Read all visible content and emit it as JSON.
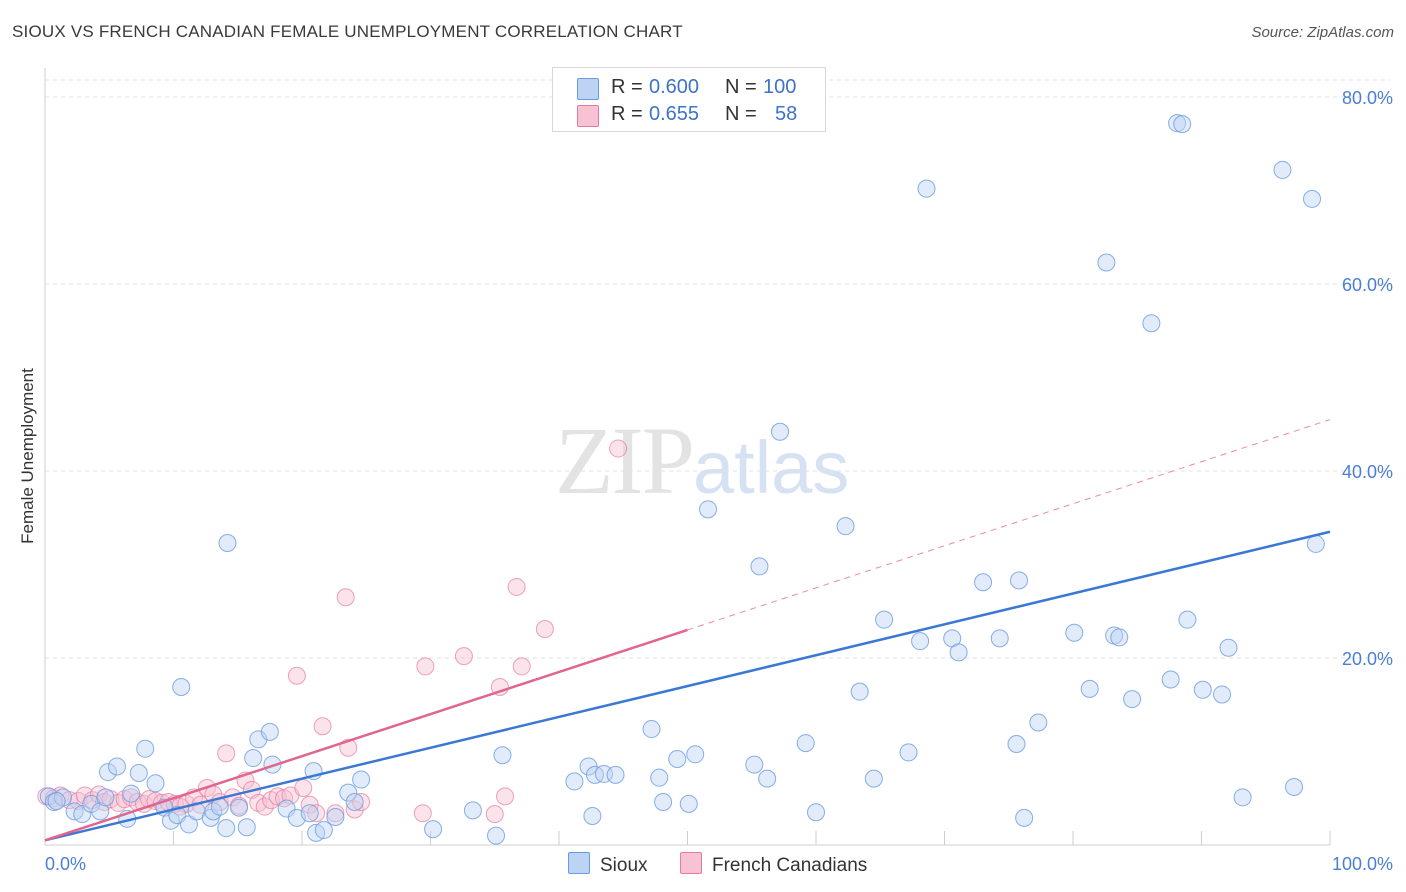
{
  "title": "SIOUX VS FRENCH CANADIAN FEMALE UNEMPLOYMENT CORRELATION CHART",
  "source": "Source: ZipAtlas.com",
  "watermark": {
    "part1": "ZIP",
    "part2": "atlas"
  },
  "colors": {
    "sioux": "#6a9be0",
    "sioux_fill": "#bcd3f3",
    "french": "#e57ca0",
    "french_fill": "#f7c2d3",
    "tick": "#4a7fd4",
    "grid": "#e2e2e2"
  },
  "legend": {
    "rows": [
      {
        "r_label": "R =",
        "r_value": "0.600",
        "n_label": "N =",
        "n_value": "100"
      },
      {
        "r_label": "R =",
        "r_value": "0.655",
        "n_label": "N =",
        "n_value": "58"
      }
    ]
  },
  "bottom_legend": {
    "sioux": "Sioux",
    "french": "French Canadians"
  },
  "chart_data": {
    "type": "scatter",
    "title": "SIOUX VS FRENCH CANADIAN FEMALE UNEMPLOYMENT CORRELATION CHART",
    "xlabel": "",
    "ylabel": "Female Unemployment",
    "xlim": [
      0,
      100
    ],
    "ylim": [
      0,
      80
    ],
    "x_tick_labels": [
      "0.0%",
      "100.0%"
    ],
    "y_ticks": [
      20,
      40,
      60,
      80
    ],
    "y_tick_labels": [
      "20.0%",
      "40.0%",
      "60.0%",
      "80.0%"
    ],
    "grid": true,
    "series": [
      {
        "name": "Sioux",
        "r": 0.6,
        "n": 100,
        "trend": {
          "x": [
            0,
            100
          ],
          "y": [
            0.5,
            33.5
          ]
        },
        "points": [
          [
            0.3,
            5.2
          ],
          [
            0.7,
            4.6
          ],
          [
            1.4,
            5.1
          ],
          [
            2.3,
            3.6
          ],
          [
            2.9,
            3.3
          ],
          [
            3.6,
            4.4
          ],
          [
            4.3,
            3.6
          ],
          [
            4.7,
            5.1
          ],
          [
            4.9,
            7.8
          ],
          [
            5.6,
            8.4
          ],
          [
            6.4,
            2.8
          ],
          [
            6.7,
            5.5
          ],
          [
            7.3,
            7.7
          ],
          [
            7.8,
            10.3
          ],
          [
            8.6,
            6.6
          ],
          [
            9.3,
            4.0
          ],
          [
            9.8,
            2.6
          ],
          [
            10.3,
            3.2
          ],
          [
            10.6,
            16.9
          ],
          [
            11.2,
            2.2
          ],
          [
            11.8,
            3.6
          ],
          [
            12.9,
            2.9
          ],
          [
            13.1,
            3.6
          ],
          [
            13.6,
            4.1
          ],
          [
            14.1,
            1.8
          ],
          [
            14.2,
            32.3
          ],
          [
            15.1,
            4.0
          ],
          [
            15.7,
            1.9
          ],
          [
            16.2,
            9.3
          ],
          [
            16.6,
            11.3
          ],
          [
            17.5,
            12.1
          ],
          [
            17.7,
            8.6
          ],
          [
            18.8,
            3.9
          ],
          [
            19.6,
            2.9
          ],
          [
            20.6,
            3.4
          ],
          [
            20.9,
            7.9
          ],
          [
            21.1,
            1.3
          ],
          [
            21.7,
            1.6
          ],
          [
            22.6,
            3.0
          ],
          [
            23.6,
            5.6
          ],
          [
            24.1,
            4.6
          ],
          [
            24.6,
            7.0
          ],
          [
            30.2,
            1.7
          ],
          [
            33.3,
            3.7
          ],
          [
            35.1,
            1.0
          ],
          [
            35.6,
            9.6
          ],
          [
            41.2,
            6.8
          ],
          [
            42.3,
            8.4
          ],
          [
            42.6,
            3.1
          ],
          [
            42.8,
            7.5
          ],
          [
            43.5,
            7.6
          ],
          [
            44.4,
            7.5
          ],
          [
            47.2,
            12.4
          ],
          [
            47.8,
            7.2
          ],
          [
            48.1,
            4.6
          ],
          [
            49.2,
            9.2
          ],
          [
            50.1,
            4.4
          ],
          [
            50.6,
            9.7
          ],
          [
            51.6,
            35.9
          ],
          [
            55.2,
            8.6
          ],
          [
            55.6,
            29.8
          ],
          [
            56.2,
            7.1
          ],
          [
            57.2,
            44.2
          ],
          [
            59.2,
            10.9
          ],
          [
            60.0,
            3.5
          ],
          [
            62.3,
            34.1
          ],
          [
            63.4,
            16.4
          ],
          [
            64.5,
            7.1
          ],
          [
            65.3,
            24.1
          ],
          [
            67.2,
            9.9
          ],
          [
            68.1,
            21.8
          ],
          [
            68.6,
            70.2
          ],
          [
            70.6,
            22.1
          ],
          [
            71.1,
            20.6
          ],
          [
            73.0,
            28.1
          ],
          [
            74.3,
            22.1
          ],
          [
            75.6,
            10.8
          ],
          [
            75.8,
            28.3
          ],
          [
            76.2,
            2.9
          ],
          [
            77.3,
            13.1
          ],
          [
            80.1,
            22.7
          ],
          [
            81.3,
            16.7
          ],
          [
            82.6,
            62.3
          ],
          [
            83.2,
            22.4
          ],
          [
            83.6,
            22.2
          ],
          [
            84.6,
            15.6
          ],
          [
            86.1,
            55.8
          ],
          [
            87.6,
            17.7
          ],
          [
            88.1,
            77.2
          ],
          [
            88.5,
            77.1
          ],
          [
            88.9,
            24.1
          ],
          [
            90.1,
            16.6
          ],
          [
            91.6,
            16.1
          ],
          [
            92.1,
            21.1
          ],
          [
            93.2,
            5.1
          ],
          [
            96.3,
            72.2
          ],
          [
            97.2,
            6.2
          ],
          [
            98.6,
            69.1
          ],
          [
            98.9,
            32.2
          ],
          [
            0.9,
            4.7
          ]
        ]
      },
      {
        "name": "French Canadians",
        "r": 0.655,
        "n": 58,
        "trend": {
          "x": [
            0,
            100
          ],
          "y": [
            0.5,
            45.5
          ]
        },
        "trend_solid_until": 50,
        "points": [
          [
            0.1,
            5.2
          ],
          [
            0.7,
            5.0
          ],
          [
            1.2,
            5.3
          ],
          [
            1.9,
            4.8
          ],
          [
            2.6,
            4.7
          ],
          [
            3.1,
            5.3
          ],
          [
            3.7,
            4.8
          ],
          [
            4.2,
            5.4
          ],
          [
            4.6,
            4.6
          ],
          [
            5.1,
            4.9
          ],
          [
            5.7,
            4.5
          ],
          [
            6.2,
            4.9
          ],
          [
            6.7,
            5.1
          ],
          [
            7.2,
            4.6
          ],
          [
            7.7,
            4.4
          ],
          [
            8.1,
            4.9
          ],
          [
            8.6,
            4.7
          ],
          [
            9.1,
            4.5
          ],
          [
            9.6,
            4.6
          ],
          [
            10.1,
            4.4
          ],
          [
            10.5,
            4.1
          ],
          [
            11.0,
            4.4
          ],
          [
            11.6,
            5.1
          ],
          [
            12.1,
            4.3
          ],
          [
            12.6,
            6.1
          ],
          [
            13.1,
            5.4
          ],
          [
            13.6,
            4.6
          ],
          [
            14.1,
            9.8
          ],
          [
            14.6,
            5.1
          ],
          [
            15.1,
            4.2
          ],
          [
            15.6,
            6.9
          ],
          [
            16.1,
            5.9
          ],
          [
            16.6,
            4.5
          ],
          [
            17.1,
            4.1
          ],
          [
            17.6,
            4.8
          ],
          [
            18.1,
            5.2
          ],
          [
            18.6,
            5.0
          ],
          [
            19.1,
            5.3
          ],
          [
            19.6,
            18.1
          ],
          [
            20.1,
            6.1
          ],
          [
            20.6,
            4.3
          ],
          [
            21.1,
            3.4
          ],
          [
            21.6,
            12.7
          ],
          [
            22.6,
            3.4
          ],
          [
            23.6,
            10.4
          ],
          [
            24.1,
            3.8
          ],
          [
            24.6,
            4.6
          ],
          [
            23.4,
            26.5
          ],
          [
            29.4,
            3.4
          ],
          [
            29.6,
            19.1
          ],
          [
            32.6,
            20.2
          ],
          [
            35.0,
            3.3
          ],
          [
            35.4,
            16.9
          ],
          [
            35.8,
            5.2
          ],
          [
            36.7,
            27.6
          ],
          [
            37.1,
            19.1
          ],
          [
            38.9,
            23.1
          ],
          [
            44.6,
            42.4
          ]
        ]
      }
    ]
  }
}
